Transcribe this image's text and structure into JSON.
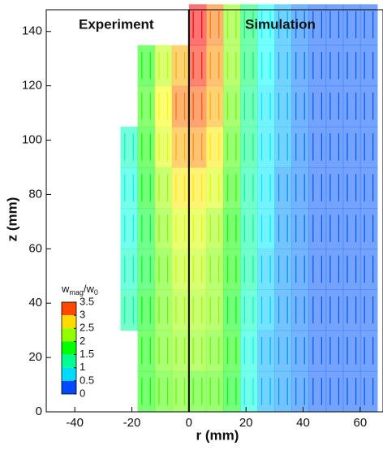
{
  "chart_data": {
    "type": "vector-field",
    "x_label": "r (mm)",
    "y_label": "z (mm)",
    "annotations": [
      "Experiment",
      "Simulation"
    ],
    "xlim": [
      -50,
      68
    ],
    "ylim": [
      0,
      148
    ],
    "xticks": [
      -40,
      -20,
      0,
      20,
      40,
      60
    ],
    "yticks": [
      0,
      20,
      40,
      60,
      80,
      100,
      120,
      140
    ],
    "field": {
      "x": [
        -21,
        -15,
        -9,
        -3,
        3,
        9,
        15,
        21,
        27,
        33,
        39,
        45,
        51,
        57,
        63
      ],
      "z": [
        7.5,
        22.5,
        37.5,
        52.5,
        67.5,
        82.5,
        97.5,
        112.5,
        127.5,
        142.5
      ],
      "values": [
        [
          null,
          1.8,
          2.0,
          2.1,
          2.0,
          2.0,
          1.7,
          1.0,
          0.6,
          0.5,
          0.4,
          0.3,
          0.3,
          0.3,
          0.3
        ],
        [
          null,
          1.8,
          2.1,
          2.2,
          2.2,
          2.1,
          1.8,
          1.0,
          0.6,
          0.5,
          0.4,
          0.3,
          0.3,
          0.3,
          0.3
        ],
        [
          1.2,
          1.7,
          2.1,
          2.3,
          2.3,
          2.2,
          1.7,
          1.1,
          0.7,
          0.5,
          0.4,
          0.3,
          0.3,
          0.3,
          0.3
        ],
        [
          1.1,
          1.6,
          2.1,
          2.4,
          2.4,
          2.2,
          1.8,
          1.2,
          0.7,
          0.5,
          0.4,
          0.3,
          0.3,
          0.3,
          0.3
        ],
        [
          1.0,
          1.6,
          2.2,
          2.5,
          2.5,
          2.3,
          1.8,
          1.2,
          0.8,
          0.5,
          0.4,
          0.3,
          0.3,
          0.3,
          0.3
        ],
        [
          1.0,
          1.7,
          2.3,
          2.7,
          2.7,
          2.5,
          1.9,
          1.2,
          0.8,
          0.5,
          0.4,
          0.3,
          0.3,
          0.3,
          0.3
        ],
        [
          1.1,
          1.8,
          2.5,
          2.9,
          3.0,
          2.7,
          2.0,
          1.3,
          0.8,
          0.6,
          0.4,
          0.3,
          0.3,
          0.3,
          0.3
        ],
        [
          null,
          1.9,
          2.6,
          3.1,
          3.2,
          2.9,
          2.1,
          1.3,
          0.8,
          0.6,
          0.4,
          0.3,
          0.3,
          0.3,
          0.3
        ],
        [
          null,
          1.8,
          2.4,
          2.9,
          3.4,
          3.0,
          2.2,
          1.4,
          0.9,
          0.6,
          0.4,
          0.3,
          0.3,
          0.3,
          0.3
        ],
        [
          null,
          null,
          null,
          null,
          3.5,
          3.1,
          2.2,
          1.4,
          0.9,
          0.6,
          0.4,
          0.3,
          0.3,
          0.3,
          0.3
        ]
      ]
    },
    "colorbar": {
      "title": [
        "w",
        "mag",
        "/w",
        "0"
      ],
      "clim": [
        0,
        3.5
      ],
      "ticks": [
        3.5,
        3,
        2.5,
        2,
        1.5,
        1,
        0.5,
        0
      ],
      "colormap": [
        "#0000ff",
        "#00ffff",
        "#00ff00",
        "#ffff00",
        "#ff0000"
      ]
    }
  }
}
